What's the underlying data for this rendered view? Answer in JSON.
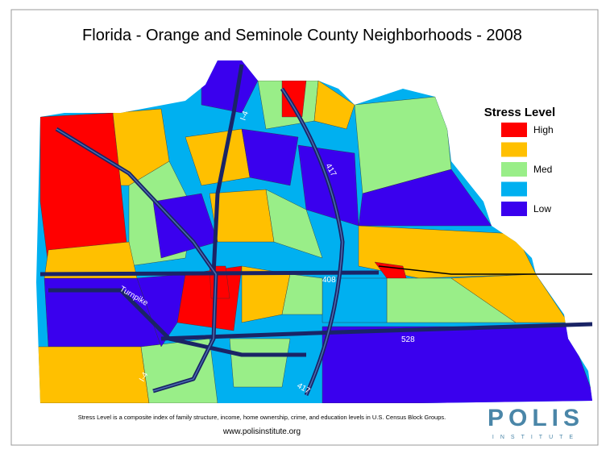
{
  "title": "Florida - Orange and Seminole County Neighborhoods - 2008",
  "legend": {
    "title": "Stress Level",
    "items": [
      {
        "label": "High",
        "color": "#ff0000"
      },
      {
        "color": "#ffc000"
      },
      {
        "label": "Med",
        "color": "#99ee88"
      },
      {
        "color": "#00b0f0"
      },
      {
        "label": "Low",
        "color": "#3a00ee"
      }
    ]
  },
  "road_labels": [
    "I-4",
    "417",
    "408",
    "Turnpike",
    "528",
    "I-4",
    "417"
  ],
  "footer": {
    "note": "Stress Level is a composite index of family structure, income, home ownership, crime, and education levels in U.S. Census Block Groups.",
    "url": "www.polisinstitute.org"
  },
  "logo": {
    "name": "POLIS",
    "tagline": "INSTITUTE"
  }
}
